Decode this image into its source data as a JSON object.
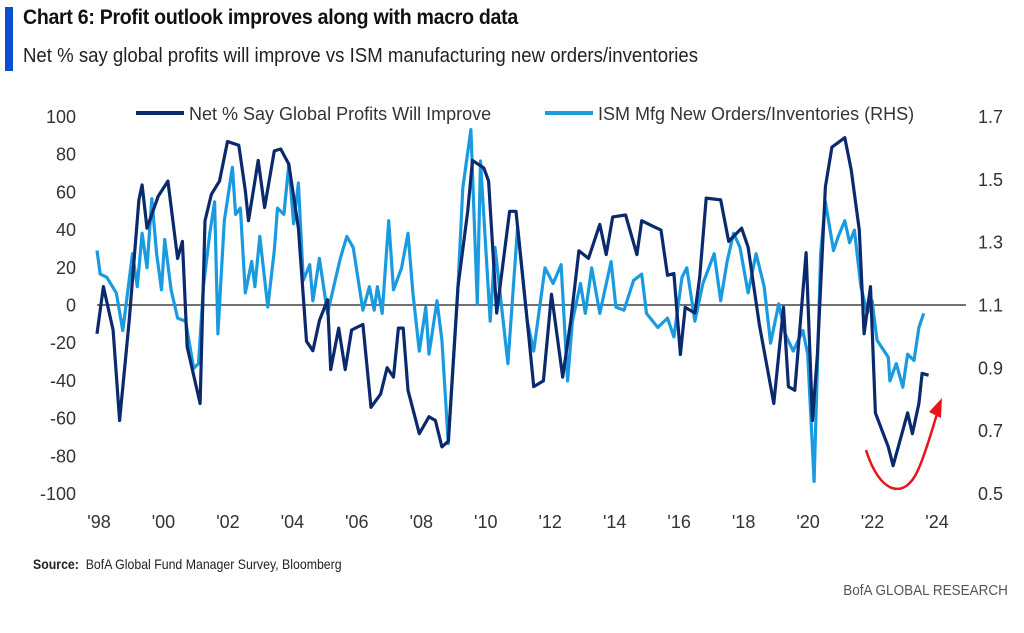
{
  "header": {
    "title": "Chart 6: Profit outlook improves along with macro data",
    "subtitle": "Net % say global profits will improve vs ISM manufacturing new orders/inventories"
  },
  "footer": {
    "source_label": "Source:",
    "source_text": "BofA Global Fund Manager Survey, Bloomberg",
    "brand": "BofA GLOBAL RESEARCH"
  },
  "colors": {
    "dark": "#0b2a6e",
    "light": "#1a9be0",
    "arrow": "#e8141b",
    "accent": "#0b4fd1"
  },
  "chart_data": {
    "type": "line",
    "title": "Chart 6: Profit outlook improves along with macro data",
    "xlabel": "",
    "ylabel": "",
    "xlim": [
      1998,
      2024
    ],
    "x_ticks": [
      "'98",
      "'00",
      "'02",
      "'04",
      "'06",
      "'08",
      "'10",
      "'12",
      "'14",
      "'16",
      "'18",
      "'20",
      "'22",
      "'24"
    ],
    "y_left": {
      "lim": [
        -100,
        100
      ],
      "ticks": [
        "100",
        "80",
        "60",
        "40",
        "20",
        "0",
        "-20",
        "-40",
        "-60",
        "-80",
        "-100"
      ]
    },
    "y_right": {
      "lim": [
        0.5,
        1.7
      ],
      "ticks": [
        "1.7",
        "1.5",
        "1.3",
        "1.1",
        "0.9",
        "0.7",
        "0.5"
      ]
    },
    "grid": false,
    "legend_position": "top",
    "series": [
      {
        "name": "Net % Say Global Profits Will Improve",
        "axis": "left",
        "color": "#0b2a6e",
        "points": [
          [
            1998.0,
            -15
          ],
          [
            1998.2,
            10
          ],
          [
            1998.5,
            -13
          ],
          [
            1998.7,
            -61
          ],
          [
            1999.0,
            -8
          ],
          [
            1999.3,
            56
          ],
          [
            1999.4,
            64
          ],
          [
            1999.55,
            41
          ],
          [
            1999.9,
            58
          ],
          [
            2000.2,
            66
          ],
          [
            2000.5,
            25
          ],
          [
            2000.65,
            34
          ],
          [
            2000.8,
            -22
          ],
          [
            2001.2,
            -52
          ],
          [
            2001.35,
            45
          ],
          [
            2001.55,
            59
          ],
          [
            2001.8,
            66
          ],
          [
            2002.05,
            87
          ],
          [
            2002.4,
            85
          ],
          [
            2002.6,
            61
          ],
          [
            2002.7,
            45
          ],
          [
            2003.0,
            77
          ],
          [
            2003.2,
            52
          ],
          [
            2003.5,
            82
          ],
          [
            2003.7,
            83
          ],
          [
            2003.95,
            75
          ],
          [
            2004.25,
            41
          ],
          [
            2004.5,
            -19
          ],
          [
            2004.7,
            -24
          ],
          [
            2004.9,
            -8
          ],
          [
            2005.15,
            3
          ],
          [
            2005.25,
            -34
          ],
          [
            2005.5,
            -12
          ],
          [
            2005.7,
            -34
          ],
          [
            2005.9,
            -13
          ],
          [
            2006.25,
            -10
          ],
          [
            2006.5,
            -54
          ],
          [
            2006.8,
            -47
          ],
          [
            2007.0,
            -33
          ],
          [
            2007.2,
            -38
          ],
          [
            2007.35,
            -12
          ],
          [
            2007.5,
            -12
          ],
          [
            2007.65,
            -45
          ],
          [
            2008.0,
            -68
          ],
          [
            2008.3,
            -59
          ],
          [
            2008.5,
            -61
          ],
          [
            2008.7,
            -75
          ],
          [
            2008.9,
            -72
          ],
          [
            2009.2,
            10
          ],
          [
            2009.5,
            50
          ],
          [
            2009.65,
            77
          ],
          [
            2010.0,
            73
          ],
          [
            2010.15,
            66
          ],
          [
            2010.4,
            -4
          ],
          [
            2010.8,
            50
          ],
          [
            2011.0,
            50
          ],
          [
            2011.4,
            -17
          ],
          [
            2011.55,
            -43
          ],
          [
            2011.85,
            -40
          ],
          [
            2012.1,
            6
          ],
          [
            2012.45,
            -38
          ],
          [
            2012.7,
            -8
          ],
          [
            2012.95,
            29
          ],
          [
            2013.25,
            25
          ],
          [
            2013.6,
            43
          ],
          [
            2013.8,
            27
          ],
          [
            2014.0,
            47
          ],
          [
            2014.4,
            48
          ],
          [
            2014.75,
            27
          ],
          [
            2014.9,
            45
          ],
          [
            2015.25,
            42
          ],
          [
            2015.5,
            40
          ],
          [
            2015.7,
            16
          ],
          [
            2015.9,
            17
          ],
          [
            2016.1,
            -26
          ],
          [
            2016.25,
            -1
          ],
          [
            2016.55,
            -4
          ],
          [
            2016.7,
            15
          ],
          [
            2016.9,
            57
          ],
          [
            2017.35,
            56
          ],
          [
            2017.6,
            34
          ],
          [
            2018.0,
            41
          ],
          [
            2018.2,
            31
          ],
          [
            2018.55,
            -10
          ],
          [
            2019.0,
            -52
          ],
          [
            2019.3,
            -1
          ],
          [
            2019.45,
            -43
          ],
          [
            2019.65,
            -45
          ],
          [
            2020.0,
            28
          ],
          [
            2020.2,
            -61
          ],
          [
            2020.35,
            -26
          ],
          [
            2020.6,
            63
          ],
          [
            2020.8,
            84
          ],
          [
            2021.2,
            89
          ],
          [
            2021.4,
            72
          ],
          [
            2021.65,
            40
          ],
          [
            2021.8,
            -15
          ],
          [
            2022.0,
            10
          ],
          [
            2022.15,
            -57
          ],
          [
            2022.55,
            -75
          ],
          [
            2022.7,
            -85
          ],
          [
            2023.15,
            -57
          ],
          [
            2023.3,
            -68
          ],
          [
            2023.5,
            -52
          ],
          [
            2023.6,
            -36
          ],
          [
            2023.8,
            -37
          ]
        ]
      },
      {
        "name": "ISM Mfg New Orders/Inventories (RHS)",
        "axis": "right",
        "color": "#1a9be0",
        "points": [
          [
            1998.0,
            1.275
          ],
          [
            1998.1,
            1.2
          ],
          [
            1998.3,
            1.19
          ],
          [
            1998.6,
            1.14
          ],
          [
            1998.8,
            1.02
          ],
          [
            1999.1,
            1.265
          ],
          [
            1999.25,
            1.16
          ],
          [
            1999.4,
            1.33
          ],
          [
            1999.55,
            1.22
          ],
          [
            1999.7,
            1.44
          ],
          [
            1999.85,
            1.265
          ],
          [
            2000.0,
            1.15
          ],
          [
            2000.1,
            1.31
          ],
          [
            2000.3,
            1.15
          ],
          [
            2000.5,
            1.06
          ],
          [
            2000.75,
            1.05
          ],
          [
            2001.0,
            0.9
          ],
          [
            2001.15,
            0.915
          ],
          [
            2001.3,
            1.16
          ],
          [
            2001.5,
            1.33
          ],
          [
            2001.65,
            1.43
          ],
          [
            2001.75,
            1.01
          ],
          [
            2001.95,
            1.37
          ],
          [
            2002.2,
            1.54
          ],
          [
            2002.3,
            1.39
          ],
          [
            2002.45,
            1.41
          ],
          [
            2002.6,
            1.14
          ],
          [
            2002.8,
            1.24
          ],
          [
            2002.9,
            1.16
          ],
          [
            2003.05,
            1.32
          ],
          [
            2003.3,
            1.095
          ],
          [
            2003.5,
            1.275
          ],
          [
            2003.6,
            1.41
          ],
          [
            2003.8,
            1.39
          ],
          [
            2003.95,
            1.55
          ],
          [
            2004.1,
            1.36
          ],
          [
            2004.25,
            1.49
          ],
          [
            2004.4,
            1.18
          ],
          [
            2004.6,
            1.23
          ],
          [
            2004.7,
            1.115
          ],
          [
            2004.9,
            1.25
          ],
          [
            2005.15,
            1.075
          ],
          [
            2005.55,
            1.25
          ],
          [
            2005.75,
            1.32
          ],
          [
            2005.95,
            1.285
          ],
          [
            2006.25,
            1.085
          ],
          [
            2006.45,
            1.16
          ],
          [
            2006.6,
            1.085
          ],
          [
            2006.7,
            1.16
          ],
          [
            2006.85,
            1.075
          ],
          [
            2007.05,
            1.37
          ],
          [
            2007.2,
            1.15
          ],
          [
            2007.45,
            1.22
          ],
          [
            2007.65,
            1.33
          ],
          [
            2007.8,
            1.14
          ],
          [
            2008.0,
            0.955
          ],
          [
            2008.2,
            1.095
          ],
          [
            2008.3,
            0.945
          ],
          [
            2008.55,
            1.115
          ],
          [
            2008.7,
            0.99
          ],
          [
            2008.9,
            0.66
          ],
          [
            2009.2,
            1.16
          ],
          [
            2009.35,
            1.475
          ],
          [
            2009.6,
            1.66
          ],
          [
            2009.8,
            1.105
          ],
          [
            2009.9,
            1.56
          ],
          [
            2010.2,
            1.05
          ],
          [
            2010.35,
            1.285
          ],
          [
            2010.75,
            0.915
          ],
          [
            2011.05,
            1.35
          ],
          [
            2011.35,
            1.05
          ],
          [
            2011.55,
            0.955
          ],
          [
            2011.9,
            1.22
          ],
          [
            2012.15,
            1.17
          ],
          [
            2012.4,
            1.23
          ],
          [
            2012.6,
            0.86
          ],
          [
            2012.75,
            1.05
          ],
          [
            2013.0,
            1.17
          ],
          [
            2013.15,
            1.075
          ],
          [
            2013.35,
            1.22
          ],
          [
            2013.6,
            1.075
          ],
          [
            2013.95,
            1.24
          ],
          [
            2014.1,
            1.095
          ],
          [
            2014.35,
            1.085
          ],
          [
            2014.65,
            1.18
          ],
          [
            2014.9,
            1.2
          ],
          [
            2015.05,
            1.075
          ],
          [
            2015.4,
            1.03
          ],
          [
            2015.7,
            1.06
          ],
          [
            2015.9,
            1.0
          ],
          [
            2016.15,
            1.19
          ],
          [
            2016.3,
            1.22
          ],
          [
            2016.55,
            1.05
          ],
          [
            2016.8,
            1.17
          ],
          [
            2017.15,
            1.265
          ],
          [
            2017.35,
            1.115
          ],
          [
            2017.55,
            1.24
          ],
          [
            2017.75,
            1.33
          ],
          [
            2017.95,
            1.285
          ],
          [
            2018.2,
            1.14
          ],
          [
            2018.45,
            1.265
          ],
          [
            2018.7,
            1.16
          ],
          [
            2018.9,
            0.98
          ],
          [
            2019.15,
            1.105
          ],
          [
            2019.35,
            1.01
          ],
          [
            2019.6,
            0.955
          ],
          [
            2019.9,
            1.02
          ],
          [
            2020.05,
            0.945
          ],
          [
            2020.25,
            0.54
          ],
          [
            2020.45,
            1.265
          ],
          [
            2020.6,
            1.43
          ],
          [
            2020.85,
            1.275
          ],
          [
            2021.0,
            1.32
          ],
          [
            2021.2,
            1.37
          ],
          [
            2021.35,
            1.3
          ],
          [
            2021.5,
            1.34
          ],
          [
            2021.7,
            1.16
          ],
          [
            2021.9,
            1.075
          ],
          [
            2022.05,
            1.115
          ],
          [
            2022.2,
            0.99
          ],
          [
            2022.55,
            0.935
          ],
          [
            2022.6,
            0.86
          ],
          [
            2022.8,
            0.915
          ],
          [
            2023.0,
            0.84
          ],
          [
            2023.15,
            0.945
          ],
          [
            2023.35,
            0.925
          ],
          [
            2023.5,
            1.03
          ],
          [
            2023.65,
            1.075
          ]
        ]
      }
    ]
  }
}
